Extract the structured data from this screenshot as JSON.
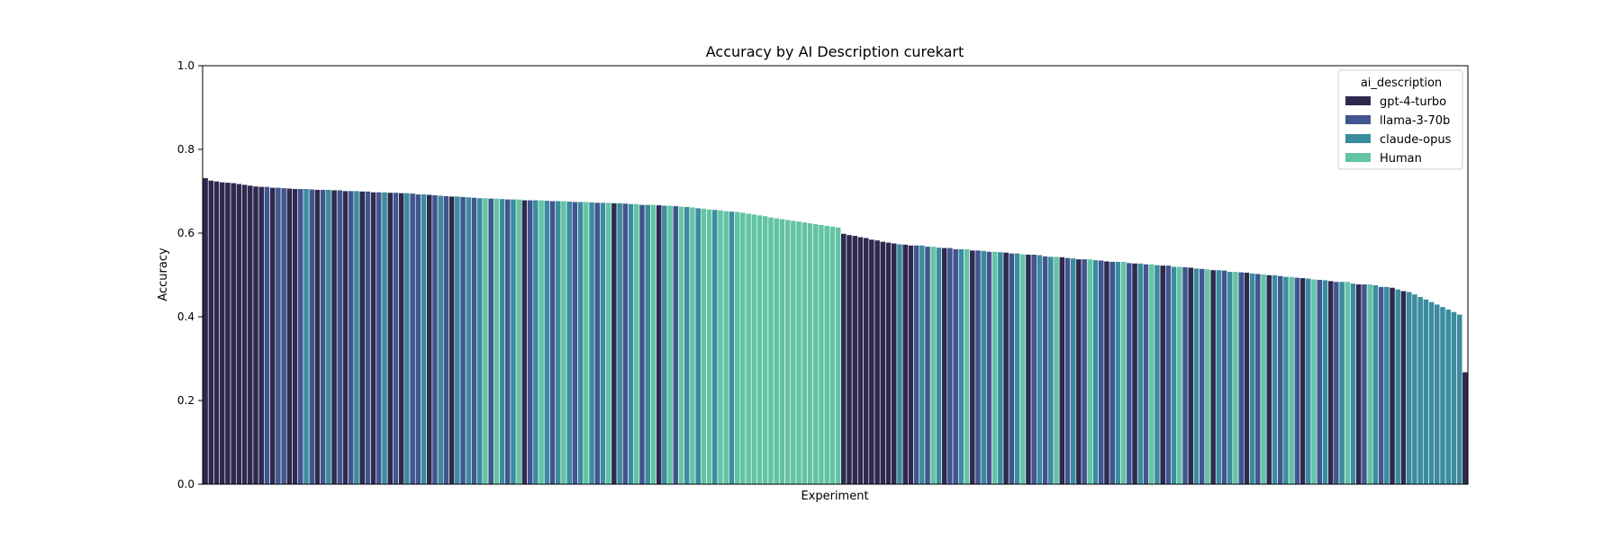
{
  "chart_data": {
    "type": "bar",
    "title": "Accuracy by AI Description curekart",
    "xlabel": "Experiment",
    "ylabel": "Accuracy",
    "ylim": [
      0,
      1.0
    ],
    "yticks": [
      "0.0",
      "0.2",
      "0.4",
      "0.6",
      "0.8",
      "1.0"
    ],
    "ytick_values": [
      0,
      0.2,
      0.4,
      0.6,
      0.8,
      1.0
    ],
    "grid": false,
    "legend": {
      "title": "ai_description",
      "placement": "top-right",
      "entries": [
        "gpt-4-turbo",
        "llama-3-70b",
        "claude-opus",
        "Human"
      ]
    },
    "colors": {
      "gpt-4-turbo": "#2e2a4f",
      "llama-3-70b": "#41558f",
      "claude-opus": "#3b8c9f",
      "Human": "#63c4a5"
    },
    "bar_edge_color": "#ffffff",
    "value_order": [
      "gpt-4-turbo",
      "llama-3-70b",
      "claude-opus",
      "Human"
    ],
    "categories_hidden": true,
    "series": [
      {
        "name": "gpt-4-turbo",
        "values": [
          0.732,
          0.726,
          0.724,
          0.722,
          0.721,
          0.72,
          0.718,
          0.716,
          0.714,
          0.712,
          0.711,
          0.709,
          0.707,
          0.706,
          0.704,
          0.703,
          0.701,
          0.7,
          0.698,
          0.697,
          0.696,
          0.692,
          0.688,
          0.679,
          0.672,
          0.667,
          0.599,
          0.596,
          0.594,
          0.591,
          0.589,
          0.585,
          0.583,
          0.58,
          0.578,
          0.576,
          0.573,
          0.571,
          0.565,
          0.559,
          0.554,
          0.549,
          0.543,
          0.538,
          0.533,
          0.528,
          0.523,
          0.518,
          0.512,
          0.506,
          0.5,
          0.493,
          0.486,
          0.478,
          0.47,
          0.462,
          0.268
        ]
      },
      {
        "name": "llama-3-70b",
        "values": [
          0.711,
          0.709,
          0.708,
          0.706,
          0.705,
          0.704,
          0.703,
          0.701,
          0.7,
          0.698,
          0.697,
          0.695,
          0.693,
          0.691,
          0.689,
          0.687,
          0.685,
          0.683,
          0.681,
          0.679,
          0.677,
          0.675,
          0.673,
          0.671,
          0.668,
          0.665,
          0.571,
          0.568,
          0.565,
          0.562,
          0.559,
          0.556,
          0.552,
          0.549,
          0.545,
          0.541,
          0.538,
          0.535,
          0.532,
          0.529,
          0.526,
          0.523,
          0.519,
          0.515,
          0.511,
          0.507,
          0.503,
          0.498,
          0.494,
          0.489,
          0.484,
          0.478,
          0.472
        ]
      },
      {
        "name": "claude-opus",
        "values": [
          0.706,
          0.704,
          0.701,
          0.698,
          0.696,
          0.693,
          0.69,
          0.688,
          0.686,
          0.684,
          0.682,
          0.681,
          0.679,
          0.678,
          0.677,
          0.676,
          0.675,
          0.674,
          0.673,
          0.672,
          0.67,
          0.668,
          0.666,
          0.663,
          0.66,
          0.656,
          0.652,
          0.574,
          0.571,
          0.566,
          0.562,
          0.558,
          0.555,
          0.552,
          0.548,
          0.544,
          0.54,
          0.536,
          0.532,
          0.528,
          0.524,
          0.52,
          0.516,
          0.512,
          0.508,
          0.504,
          0.5,
          0.496,
          0.492,
          0.488,
          0.484,
          0.48,
          0.476,
          0.472,
          0.466,
          0.46,
          0.454,
          0.448,
          0.442,
          0.436,
          0.43,
          0.424,
          0.418,
          0.412,
          0.406
        ]
      },
      {
        "name": "Human",
        "values": [
          0.684,
          0.683,
          0.681,
          0.679,
          0.677,
          0.675,
          0.673,
          0.67,
          0.668,
          0.666,
          0.664,
          0.662,
          0.659,
          0.657,
          0.655,
          0.653,
          0.651,
          0.649,
          0.647,
          0.645,
          0.643,
          0.641,
          0.638,
          0.636,
          0.634,
          0.632,
          0.63,
          0.628,
          0.626,
          0.624,
          0.622,
          0.62,
          0.618,
          0.616,
          0.614,
          0.568,
          0.562,
          0.556,
          0.55,
          0.544,
          0.538,
          0.532,
          0.526,
          0.52,
          0.514,
          0.508,
          0.502,
          0.496,
          0.49,
          0.484,
          0.478
        ]
      }
    ]
  }
}
